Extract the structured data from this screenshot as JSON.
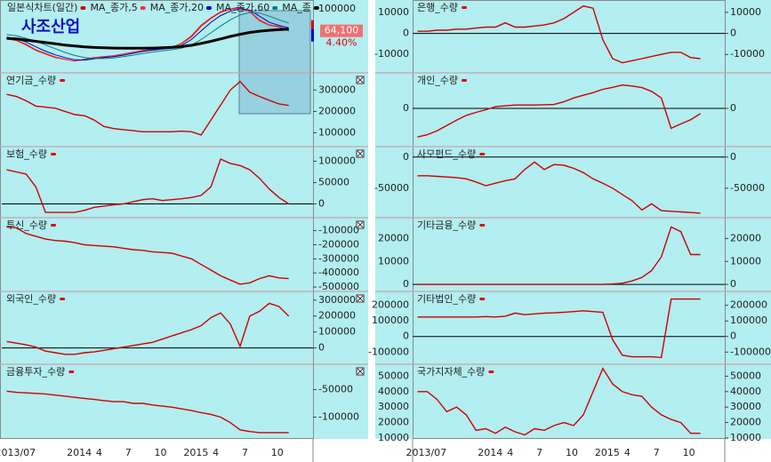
{
  "chart_data": [
    {
      "type": "line",
      "name": "사조산업",
      "series": [
        {
          "name": "일본식차트(일간)",
          "color": "#d00000",
          "values": [
            51300,
            48400,
            41100,
            32300,
            26400,
            20500,
            17600,
            14700,
            17600,
            20500,
            22000,
            23500,
            26400,
            29300,
            32300,
            33700,
            35200,
            36700,
            44000,
            55700,
            73300,
            85100,
            95300,
            99700,
            102700,
            95300,
            80700,
            73300,
            70400,
            64100
          ]
        },
        {
          "name": "MA_종가,5",
          "color": "#ff3030",
          "values": [
            52000,
            49000,
            42500,
            33500,
            27500,
            21500,
            18000,
            15000,
            17000,
            20000,
            21500,
            23000,
            26000,
            29000,
            32000,
            33500,
            35000,
            36500,
            43000,
            54000,
            71000,
            84000,
            94000,
            99000,
            101000,
            96000,
            82000,
            74000,
            71000,
            66000
          ]
        },
        {
          "name": "MA_종가,20",
          "color": "#0000c0",
          "values": [
            54000,
            51000,
            46000,
            38000,
            31000,
            25000,
            20500,
            17000,
            16500,
            18500,
            20500,
            22000,
            24500,
            27500,
            30500,
            32500,
            34500,
            36000,
            40500,
            50000,
            64000,
            78000,
            89000,
            96000,
            100000,
            98000,
            88000,
            78000,
            73000,
            69000
          ]
        },
        {
          "name": "MA_종가,60",
          "color": "#008080",
          "values": [
            58000,
            56000,
            52000,
            47000,
            41000,
            35000,
            29000,
            24000,
            20500,
            19000,
            19000,
            20000,
            22000,
            24500,
            27000,
            29500,
            31500,
            33500,
            36000,
            41000,
            50000,
            61000,
            72000,
            82000,
            90000,
            94000,
            93000,
            88000,
            82000,
            77000
          ]
        },
        {
          "name": "MA_종",
          "color": "#000000",
          "values": [
            52000,
            51000,
            49000,
            47000,
            45000,
            43000,
            41000,
            39500,
            38000,
            37000,
            36500,
            36000,
            35800,
            35700,
            35800,
            36000,
            36500,
            37200,
            38500,
            40500,
            43500,
            47000,
            51000,
            55000,
            58500,
            61500,
            63500,
            65000,
            66000,
            67000
          ]
        }
      ],
      "last_price": {
        "value": 64100,
        "label": "64,100"
      },
      "change": "4.40%",
      "ylim": [
        0,
        110000
      ],
      "yticks": [
        100000
      ]
    },
    {
      "type": "line",
      "title": "연기금_수량",
      "color": "#d00000",
      "values": [
        280000,
        270000,
        250000,
        225000,
        220000,
        215000,
        200000,
        185000,
        180000,
        160000,
        130000,
        120000,
        115000,
        110000,
        105000,
        105000,
        105000,
        105000,
        108000,
        105000,
        90000,
        160000,
        230000,
        300000,
        340000,
        290000,
        270000,
        252000,
        235000,
        228000
      ],
      "ylim": [
        48000,
        368000
      ],
      "yticks": [
        300000,
        200000,
        100000
      ]
    },
    {
      "type": "line",
      "title": "보험_수량",
      "color": "#d00000",
      "values": [
        80000,
        75000,
        70000,
        40000,
        -20000,
        -20000,
        -20000,
        -20000,
        -15000,
        -8000,
        -5000,
        -2000,
        0,
        5000,
        10000,
        12000,
        8000,
        10000,
        12000,
        15000,
        20000,
        40000,
        105000,
        95000,
        90000,
        80000,
        60000,
        35000,
        15000,
        0
      ],
      "ylim": [
        -26000,
        128000
      ],
      "yticks": [
        100000,
        50000,
        0
      ]
    },
    {
      "type": "line",
      "title": "투신_수량",
      "color": "#d00000",
      "values": [
        -75000,
        -80000,
        -120000,
        -140000,
        -160000,
        -170000,
        -175000,
        -185000,
        -200000,
        -205000,
        -210000,
        -215000,
        -225000,
        -235000,
        -240000,
        -250000,
        -255000,
        -260000,
        -280000,
        -300000,
        -340000,
        -380000,
        -420000,
        -450000,
        -480000,
        -470000,
        -440000,
        -420000,
        -435000,
        -440000
      ],
      "ylim": [
        -512000,
        -27000
      ],
      "yticks": [
        -100000,
        -200000,
        -300000,
        -400000,
        -500000
      ]
    },
    {
      "type": "line",
      "title": "외국인_수량",
      "color": "#d00000",
      "values": [
        40000,
        30000,
        20000,
        5000,
        -20000,
        -30000,
        -40000,
        -40000,
        -30000,
        -25000,
        -15000,
        -5000,
        5000,
        15000,
        25000,
        35000,
        55000,
        75000,
        95000,
        115000,
        140000,
        190000,
        220000,
        150000,
        10000,
        200000,
        230000,
        280000,
        260000,
        200000
      ],
      "ylim": [
        -86000,
        338000
      ],
      "yticks": [
        300000,
        200000,
        100000,
        0
      ]
    },
    {
      "type": "line",
      "title": "금융투자_수량",
      "color": "#d00000",
      "values": [
        -53000,
        -55000,
        -56000,
        -57000,
        -58000,
        -60000,
        -62000,
        -64000,
        -66000,
        -68000,
        -70000,
        -72000,
        -72000,
        -75000,
        -75000,
        -78000,
        -80000,
        -82000,
        -85000,
        -88000,
        -92000,
        -95000,
        -100000,
        -110000,
        -123000,
        -126000,
        -128000,
        -128000,
        -128000,
        -128000
      ],
      "ylim": [
        -133000,
        -9000
      ],
      "yticks": [
        -50000,
        -100000
      ],
      "categories": [
        "2013/07",
        null,
        null,
        null,
        null,
        null,
        "2014",
        null,
        null,
        "4",
        null,
        null,
        "7",
        null,
        null,
        "10",
        null,
        null,
        "2015",
        null,
        null,
        "4",
        null,
        null,
        "7",
        null,
        null,
        "10",
        null,
        null
      ]
    },
    {
      "type": "line",
      "title": "은행_수량",
      "color": "#d00000",
      "values": [
        1000,
        1000,
        1500,
        1500,
        2000,
        2000,
        2500,
        3000,
        3000,
        5000,
        3000,
        3000,
        3500,
        4000,
        5000,
        7000,
        10000,
        13000,
        12000,
        -3000,
        -12000,
        -14000,
        -13000,
        -12000,
        -11000,
        -10000,
        -9000,
        -9000,
        -11500,
        -12000
      ],
      "ylim": [
        -17500,
        14600
      ],
      "yticks": [
        10000,
        0,
        -10000
      ]
    },
    {
      "type": "line",
      "title": "개인_수량",
      "color": "#d00000",
      "values": [
        -217000,
        -200000,
        -171000,
        -130000,
        -90000,
        -53000,
        -30000,
        -10000,
        13000,
        20000,
        26000,
        26000,
        26000,
        28000,
        30000,
        50000,
        79000,
        100000,
        120000,
        145000,
        160000,
        178000,
        170000,
        158000,
        130000,
        79000,
        -151000,
        -118000,
        -86000,
        -40000
      ],
      "ylim": [
        -270000,
        250000
      ],
      "yticks": [
        0
      ]
    },
    {
      "type": "line",
      "title": "사모펀드_수량",
      "color": "#d00000",
      "values": [
        -30000,
        -30000,
        -31000,
        -32000,
        -33000,
        -35000,
        -40000,
        -46000,
        -42000,
        -38000,
        -35000,
        -20000,
        -8000,
        -20000,
        -12000,
        -13000,
        -18000,
        -25000,
        -35000,
        -42000,
        -50000,
        -60000,
        -70000,
        -85000,
        -75000,
        -86000,
        -87000,
        -88000,
        -89000,
        -90000
      ],
      "ylim": [
        -93000,
        12500
      ],
      "yticks": [
        0,
        -50000
      ]
    },
    {
      "type": "line",
      "title": "기타금융_수량",
      "color": "#d00000",
      "values": [
        0,
        0,
        0,
        0,
        0,
        0,
        0,
        0,
        0,
        0,
        0,
        0,
        0,
        0,
        0,
        0,
        0,
        0,
        0,
        0,
        200,
        500,
        1500,
        3000,
        6000,
        12000,
        25000,
        23000,
        13000,
        13000
      ],
      "ylim": [
        -1900,
        27900
      ],
      "yticks": [
        20000,
        10000,
        0
      ]
    },
    {
      "type": "line",
      "title": "기타법인_수량",
      "color": "#d00000",
      "values": [
        125000,
        125000,
        125000,
        125000,
        125000,
        125000,
        125000,
        128000,
        125000,
        130000,
        150000,
        140000,
        145000,
        150000,
        152000,
        155000,
        160000,
        165000,
        160000,
        155000,
        -20000,
        -120000,
        -130000,
        -130000,
        -130000,
        -135000,
        240000,
        240000,
        240000,
        240000
      ],
      "ylim": [
        -161000,
        272000
      ],
      "yticks": [
        200000,
        100000,
        0,
        -100000
      ]
    },
    {
      "type": "line",
      "title": "국가지자체_수량",
      "color": "#d00000",
      "values": [
        40000,
        40000,
        35000,
        27000,
        30000,
        25000,
        15000,
        16000,
        13000,
        17000,
        14000,
        12000,
        16000,
        15000,
        18000,
        20000,
        18000,
        25000,
        40000,
        55000,
        45000,
        40000,
        38000,
        37000,
        30000,
        25000,
        22000,
        20000,
        13000,
        13000
      ],
      "ylim": [
        11700,
        56000
      ],
      "yticks": [
        50000,
        40000,
        30000,
        20000,
        10000
      ],
      "categories": [
        "2013/07",
        null,
        null,
        null,
        null,
        null,
        "2014",
        null,
        null,
        "4",
        null,
        null,
        "7",
        null,
        null,
        "10",
        null,
        null,
        "2015",
        null,
        null,
        "4",
        null,
        null,
        "7",
        null,
        null,
        "10",
        null,
        null
      ]
    }
  ]
}
